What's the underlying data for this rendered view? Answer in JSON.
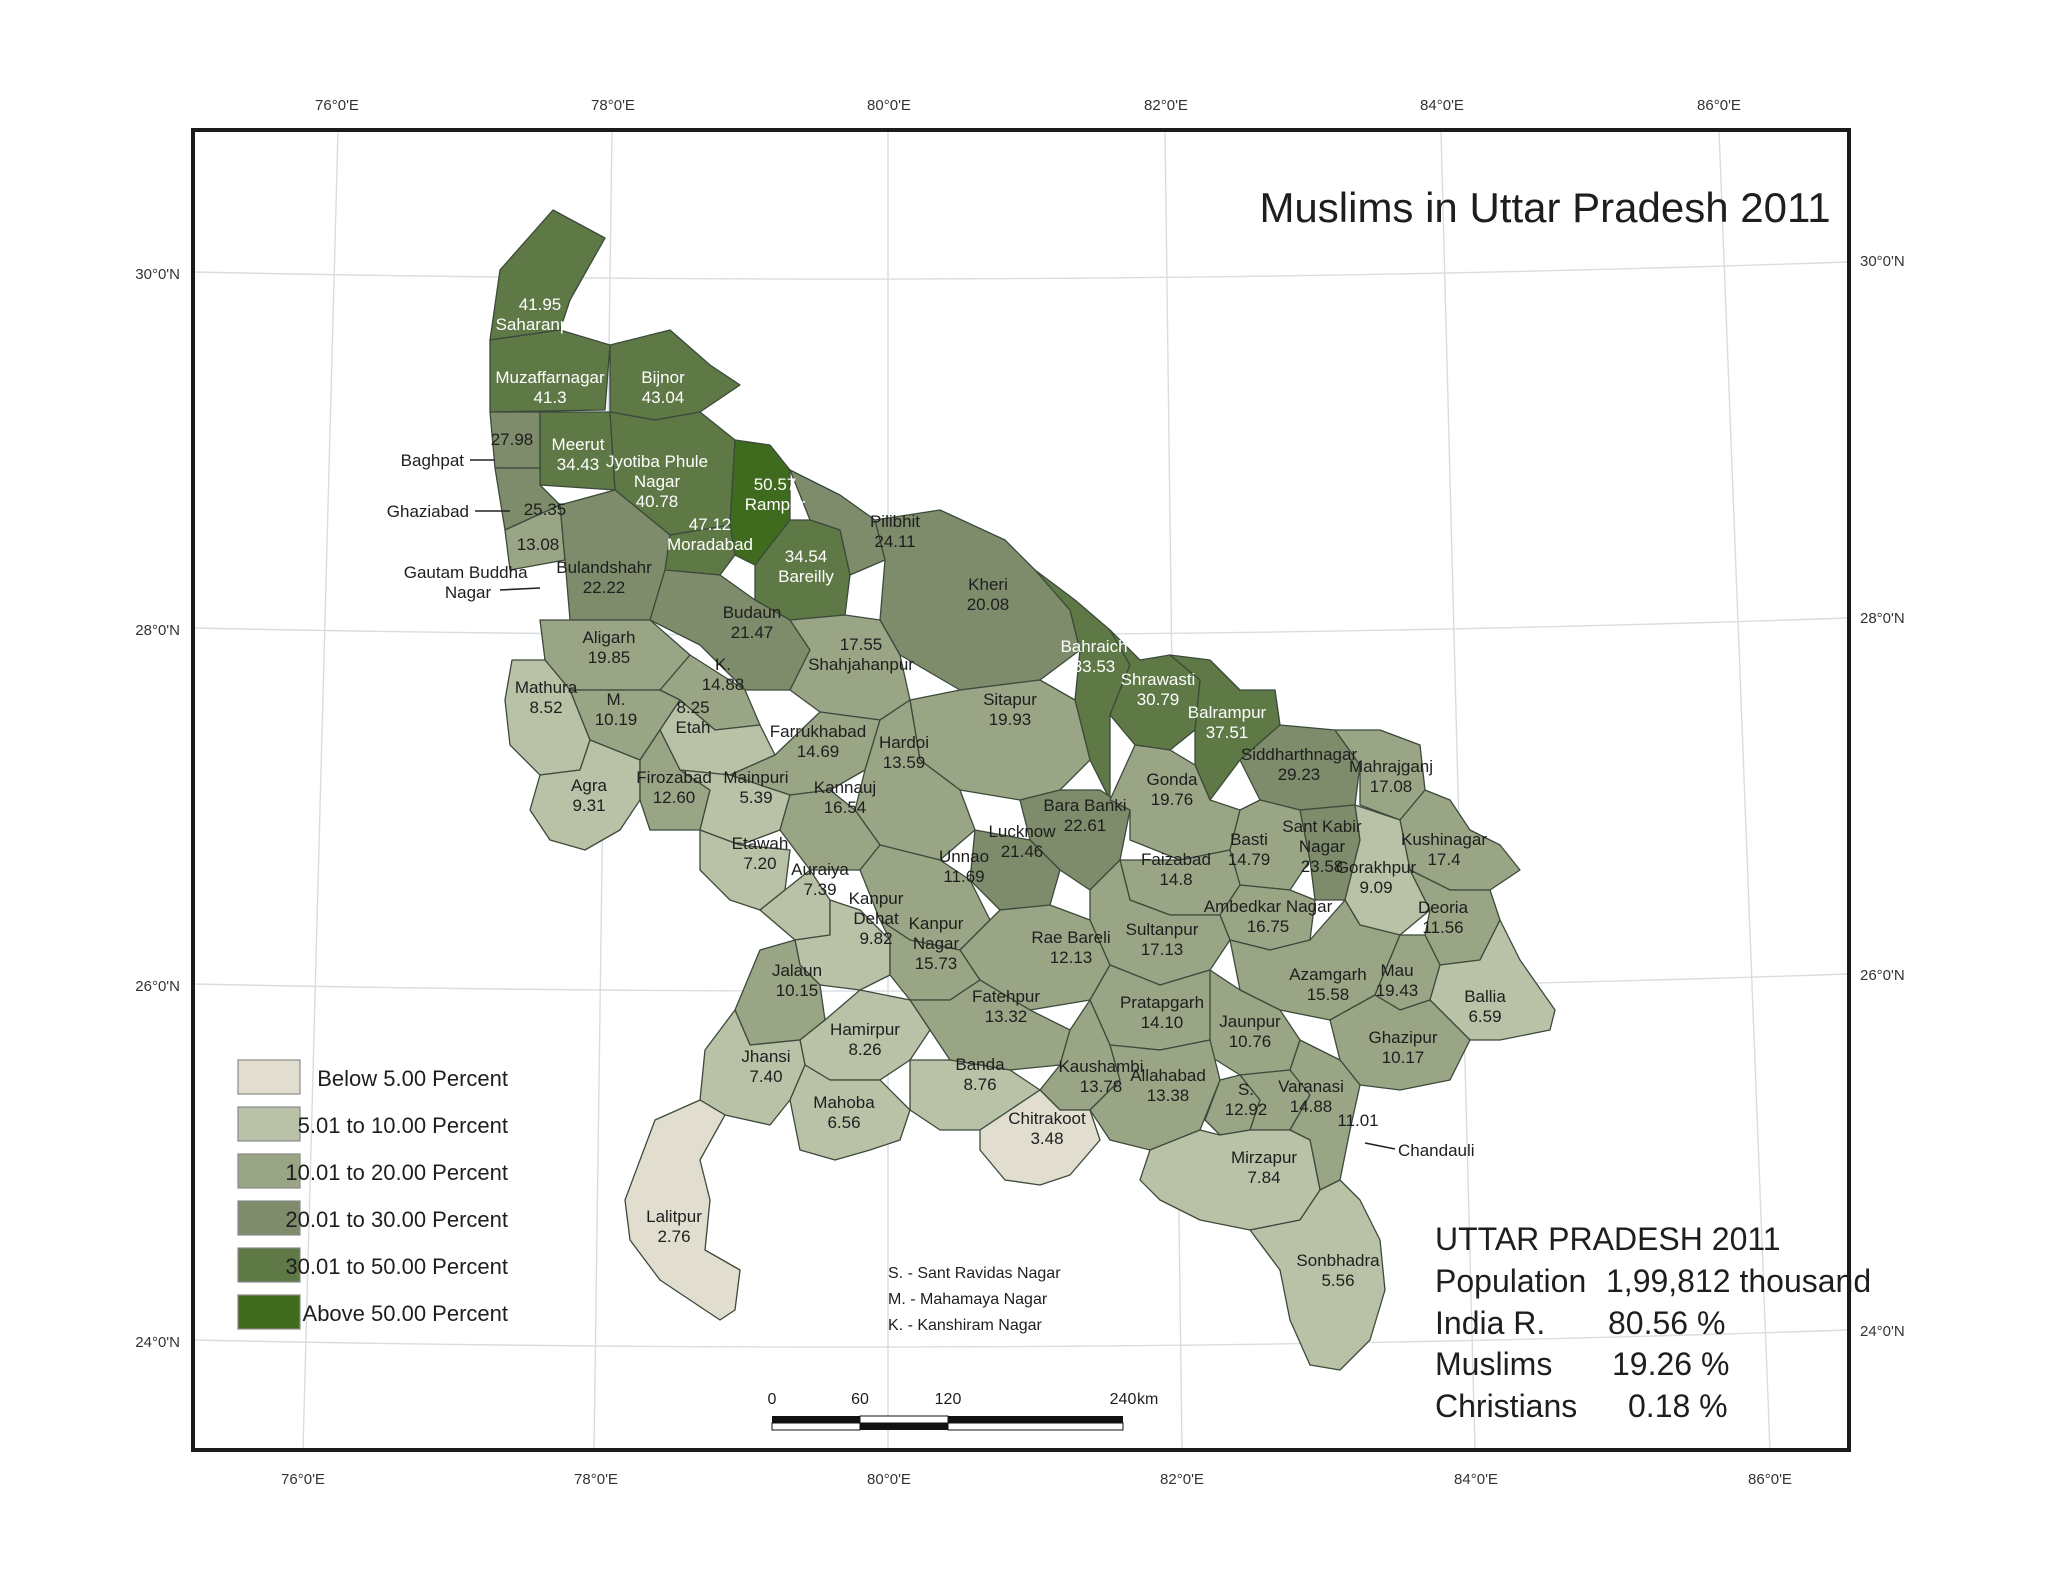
{
  "map": {
    "title": "Muslims in Uttar Pradesh 2011",
    "colors": {
      "below5": "#e1ded0",
      "c5to10": "#b9c2a7",
      "c10to20": "#9aa586",
      "c20to30": "#7e8c6c",
      "c30to50": "#5e7846",
      "above50": "#3f6b1e",
      "border": "#3b4a3b",
      "frame": "#1a1a1a"
    },
    "top_ticks": [
      "76°0'E",
      "78°0'E",
      "80°0'E",
      "82°0'E",
      "84°0'E",
      "86°0'E"
    ],
    "bottom_ticks": [
      "76°0'E",
      "78°0'E",
      "80°0'E",
      "82°0'E",
      "84°0'E",
      "86°0'E"
    ],
    "left_ticks": [
      "30°0'N",
      "28°0'N",
      "26°0'N",
      "24°0'N"
    ],
    "right_ticks": [
      "30°0'N",
      "28°0'N",
      "26°0'N",
      "24°0'N"
    ],
    "legend": [
      {
        "label": "Below 5.00 Percent",
        "class": "below5"
      },
      {
        "label": "5.01 to 10.00 Percent",
        "class": "c5to10"
      },
      {
        "label": "10.01 to 20.00 Percent",
        "class": "c10to20"
      },
      {
        "label": "20.01 to 30.00 Percent",
        "class": "c20to30"
      },
      {
        "label": "30.01 to 50.00 Percent",
        "class": "c30to50"
      },
      {
        "label": "Above 50.00 Percent",
        "class": "above50"
      }
    ],
    "abbreviations": [
      "S.  - Sant Ravidas Nagar",
      "M. - Mahamaya Nagar",
      "K.  - Kanshiram Nagar"
    ],
    "scale_bar": {
      "labels": [
        "0",
        "60",
        "120",
        "240"
      ],
      "unit": "km"
    },
    "summary": {
      "heading": "UTTAR PRADESH 2011",
      "rows": [
        {
          "label": "Population",
          "value": "1,99,812 thousand"
        },
        {
          "label": "India R.",
          "value": "80.56 %"
        },
        {
          "label": "Muslims",
          "value": "19.26 %"
        },
        {
          "label": "Christians",
          "value": "0.18 %"
        }
      ]
    },
    "callouts": [
      {
        "name": "Baghpat",
        "lines": [
          "Baghpat"
        ]
      },
      {
        "name": "Ghaziabad",
        "lines": [
          "Ghaziabad"
        ]
      },
      {
        "name": "Gautam Buddha Nagar",
        "lines": [
          "Gautam Buddha",
          "Nagar"
        ]
      },
      {
        "name": "Chandauli",
        "lines": [
          "Chandauli"
        ]
      }
    ],
    "districts": [
      {
        "id": "saharanpur",
        "lines": [
          "41.95",
          "Saharanpur"
        ],
        "class": "c30to50"
      },
      {
        "id": "muzaffarnagar",
        "lines": [
          "Muzaffarnagar",
          "41.3"
        ],
        "class": "c30to50"
      },
      {
        "id": "bijnor",
        "lines": [
          "Bijnor",
          "43.04"
        ],
        "class": "c30to50"
      },
      {
        "id": "baghpat",
        "lines": [
          "27.98"
        ],
        "class": "c20to30"
      },
      {
        "id": "meerut",
        "lines": [
          "Meerut",
          "34.43"
        ],
        "class": "c30to50"
      },
      {
        "id": "jpnagar",
        "lines": [
          "Jyotiba Phule",
          "Nagar",
          "40.78"
        ],
        "class": "c30to50"
      },
      {
        "id": "rampur",
        "lines": [
          "50.57",
          "Rampur"
        ],
        "class": "above50"
      },
      {
        "id": "moradabad",
        "lines": [
          "47.12",
          "Moradabad"
        ],
        "class": "c30to50"
      },
      {
        "id": "ghaziabad",
        "lines": [
          "25.35"
        ],
        "class": "c20to30"
      },
      {
        "id": "gbnagar",
        "lines": [
          "13.08"
        ],
        "class": "c10to20"
      },
      {
        "id": "bulandshahr",
        "lines": [
          "Bulandshahr",
          "22.22"
        ],
        "class": "c20to30"
      },
      {
        "id": "pilibhit",
        "lines": [
          "Pilibhit",
          "24.11"
        ],
        "class": "c20to30"
      },
      {
        "id": "bareilly",
        "lines": [
          "34.54",
          "Bareilly"
        ],
        "class": "c30to50"
      },
      {
        "id": "kheri",
        "lines": [
          "Kheri",
          "20.08"
        ],
        "class": "c20to30"
      },
      {
        "id": "budaun",
        "lines": [
          "Budaun",
          "21.47"
        ],
        "class": "c20to30"
      },
      {
        "id": "aligarh",
        "lines": [
          "Aligarh",
          "19.85"
        ],
        "class": "c10to20"
      },
      {
        "id": "kanshiram",
        "lines": [
          "K.",
          "14.88"
        ],
        "class": "c10to20"
      },
      {
        "id": "shahjahanpur",
        "lines": [
          "17.55",
          "Shahjahanpur"
        ],
        "class": "c10to20"
      },
      {
        "id": "bahraich",
        "lines": [
          "Bahraich",
          "33.53"
        ],
        "class": "c30to50"
      },
      {
        "id": "shrawasti",
        "lines": [
          "Shrawasti",
          "30.79"
        ],
        "class": "c30to50"
      },
      {
        "id": "balrampur",
        "lines": [
          "Balrampur",
          "37.51"
        ],
        "class": "c30to50"
      },
      {
        "id": "mathura",
        "lines": [
          "Mathura",
          "8.52"
        ],
        "class": "c5to10"
      },
      {
        "id": "hathras",
        "lines": [
          "M.",
          "10.19"
        ],
        "class": "c10to20"
      },
      {
        "id": "etah",
        "lines": [
          "8.25",
          "Etah"
        ],
        "class": "c5to10"
      },
      {
        "id": "sitapur",
        "lines": [
          "Sitapur",
          "19.93"
        ],
        "class": "c10to20"
      },
      {
        "id": "siddharthnagar",
        "lines": [
          "Siddharthnagar",
          "29.23"
        ],
        "class": "c20to30"
      },
      {
        "id": "mahrajganj",
        "lines": [
          "Mahrajganj",
          "17.08"
        ],
        "class": "c10to20"
      },
      {
        "id": "farrukhabad",
        "lines": [
          "Farrukhabad",
          "14.69"
        ],
        "class": "c10to20"
      },
      {
        "id": "hardoi",
        "lines": [
          "Hardoi",
          "13.59"
        ],
        "class": "c10to20"
      },
      {
        "id": "agra",
        "lines": [
          "Agra",
          "9.31"
        ],
        "class": "c5to10"
      },
      {
        "id": "firozabad",
        "lines": [
          "Firozabad",
          "12.60"
        ],
        "class": "c10to20"
      },
      {
        "id": "mainpuri",
        "lines": [
          "Mainpuri",
          "5.39"
        ],
        "class": "c5to10"
      },
      {
        "id": "kannauj",
        "lines": [
          "Kannauj",
          "16.54"
        ],
        "class": "c10to20"
      },
      {
        "id": "barabanki",
        "lines": [
          "Bara Banki",
          "22.61"
        ],
        "class": "c20to30"
      },
      {
        "id": "gonda",
        "lines": [
          "Gonda",
          "19.76"
        ],
        "class": "c10to20"
      },
      {
        "id": "lucknow",
        "lines": [
          "Lucknow",
          "21.46"
        ],
        "class": "c20to30"
      },
      {
        "id": "basti",
        "lines": [
          "Basti",
          "14.79"
        ],
        "class": "c10to20"
      },
      {
        "id": "santkabir",
        "lines": [
          "Sant Kabir",
          "Nagar",
          "23.58"
        ],
        "class": "c20to30"
      },
      {
        "id": "kushinagar",
        "lines": [
          "Kushinagar",
          "17.4"
        ],
        "class": "c10to20"
      },
      {
        "id": "gorakhpur",
        "lines": [
          "Gorakhpur",
          "9.09"
        ],
        "class": "c5to10"
      },
      {
        "id": "etawah",
        "lines": [
          "Etawah",
          "7.20"
        ],
        "class": "c5to10"
      },
      {
        "id": "auraiya",
        "lines": [
          "Auraiya",
          "7.39"
        ],
        "class": "c5to10"
      },
      {
        "id": "unnao",
        "lines": [
          "Unnao",
          "11.69"
        ],
        "class": "c10to20"
      },
      {
        "id": "faizabad",
        "lines": [
          "Faizabad",
          "14.8"
        ],
        "class": "c10to20"
      },
      {
        "id": "ambedkar",
        "lines": [
          "Ambedkar Nagar",
          "16.75"
        ],
        "class": "c10to20"
      },
      {
        "id": "deoria",
        "lines": [
          "Deoria",
          "11.56"
        ],
        "class": "c10to20"
      },
      {
        "id": "kanpurdehat",
        "lines": [
          "Kanpur",
          "Dehat",
          "9.82"
        ],
        "class": "c5to10"
      },
      {
        "id": "kanpurnagar",
        "lines": [
          "Kanpur",
          "Nagar",
          "15.73"
        ],
        "class": "c10to20"
      },
      {
        "id": "raebareli",
        "lines": [
          "Rae Bareli",
          "12.13"
        ],
        "class": "c10to20"
      },
      {
        "id": "sultanpur",
        "lines": [
          "Sultanpur",
          "17.13"
        ],
        "class": "c10to20"
      },
      {
        "id": "azamgarh",
        "lines": [
          "Azamgarh",
          "15.58"
        ],
        "class": "c10to20"
      },
      {
        "id": "mau",
        "lines": [
          "Mau",
          "19.43"
        ],
        "class": "c10to20"
      },
      {
        "id": "ballia",
        "lines": [
          "Ballia",
          "6.59"
        ],
        "class": "c5to10"
      },
      {
        "id": "jalaun",
        "lines": [
          "Jalaun",
          "10.15"
        ],
        "class": "c10to20"
      },
      {
        "id": "fatehpur",
        "lines": [
          "Fatehpur",
          "13.32"
        ],
        "class": "c10to20"
      },
      {
        "id": "pratapgarh",
        "lines": [
          "Pratapgarh",
          "14.10"
        ],
        "class": "c10to20"
      },
      {
        "id": "jaunpur",
        "lines": [
          "Jaunpur",
          "10.76"
        ],
        "class": "c10to20"
      },
      {
        "id": "ghazipur",
        "lines": [
          "Ghazipur",
          "10.17"
        ],
        "class": "c10to20"
      },
      {
        "id": "hamirpur",
        "lines": [
          "Hamirpur",
          "8.26"
        ],
        "class": "c5to10"
      },
      {
        "id": "jhansi",
        "lines": [
          "Jhansi",
          "7.40"
        ],
        "class": "c5to10"
      },
      {
        "id": "banda",
        "lines": [
          "Banda",
          "8.76"
        ],
        "class": "c5to10"
      },
      {
        "id": "kaushambi",
        "lines": [
          "Kaushambi",
          "13.78"
        ],
        "class": "c10to20"
      },
      {
        "id": "allahabad",
        "lines": [
          "Allahabad",
          "13.38"
        ],
        "class": "c10to20"
      },
      {
        "id": "santravidas",
        "lines": [
          "S.",
          "12.92"
        ],
        "class": "c10to20"
      },
      {
        "id": "varanasi",
        "lines": [
          "Varanasi",
          "14.88"
        ],
        "class": "c10to20"
      },
      {
        "id": "chandauli",
        "lines": [
          "11.01"
        ],
        "class": "c10to20"
      },
      {
        "id": "mahoba",
        "lines": [
          "Mahoba",
          "6.56"
        ],
        "class": "c5to10"
      },
      {
        "id": "chitrakoot",
        "lines": [
          "Chitrakoot",
          "3.48"
        ],
        "class": "below5"
      },
      {
        "id": "mirzapur",
        "lines": [
          "Mirzapur",
          "7.84"
        ],
        "class": "c5to10"
      },
      {
        "id": "lalitpur",
        "lines": [
          "Lalitpur",
          "2.76"
        ],
        "class": "below5"
      },
      {
        "id": "sonbhadra",
        "lines": [
          "Sonbhadra",
          "5.56"
        ],
        "class": "c5to10"
      }
    ]
  }
}
